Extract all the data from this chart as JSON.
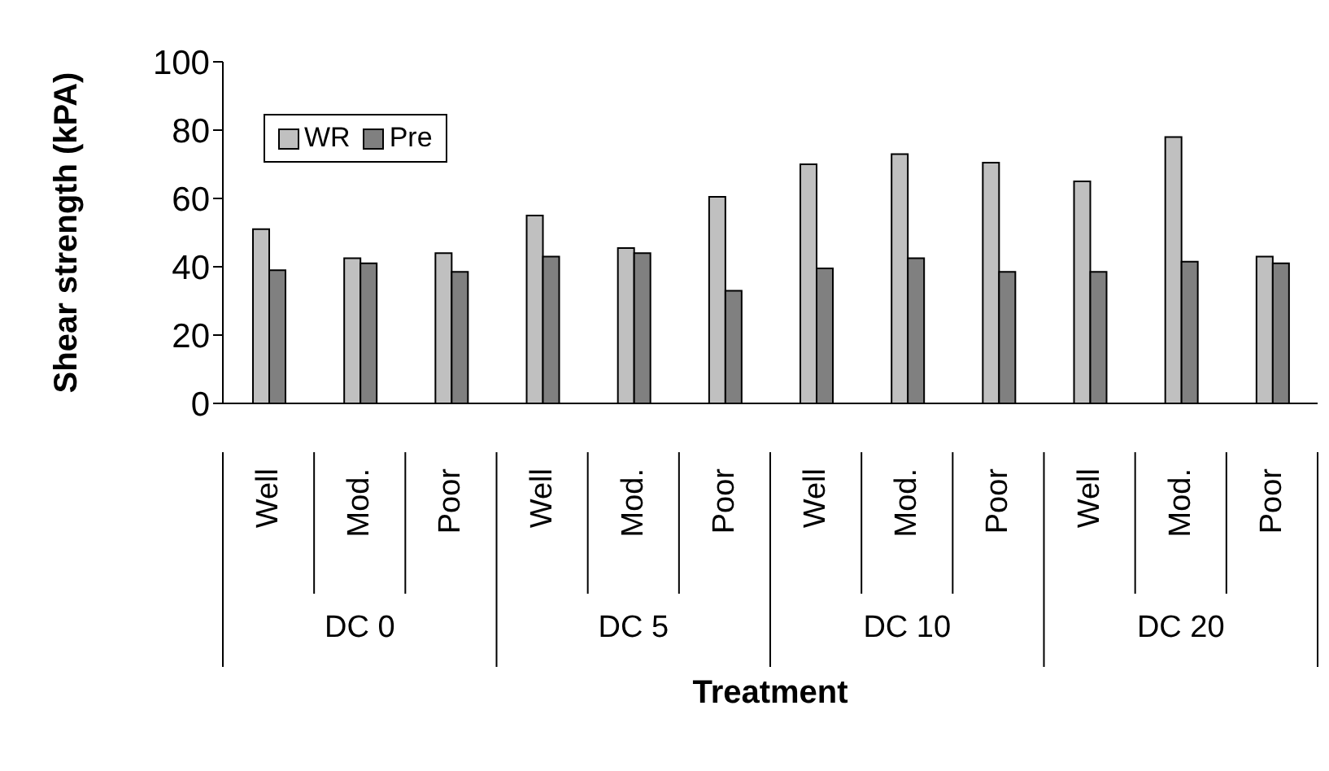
{
  "chart_data": {
    "type": "bar",
    "xlabel": "Treatment",
    "ylabel": "Shear strength (kPA)",
    "categories": [
      "Well",
      "Mod.",
      "Poor",
      "Well",
      "Mod.",
      "Poor",
      "Well",
      "Mod.",
      "Poor",
      "Well",
      "Mod.",
      "Poor"
    ],
    "annotations": [
      "DC 0",
      "DC 5",
      "DC 10",
      "DC 20"
    ],
    "series": [
      {
        "name": "WR",
        "color": "#c0c0c0",
        "values": [
          51,
          42.5,
          44,
          55,
          45.5,
          60.5,
          70,
          73,
          70.5,
          65,
          78,
          43
        ]
      },
      {
        "name": "Pre",
        "color": "#808080",
        "values": [
          39,
          41,
          38.5,
          43,
          44,
          33,
          39.5,
          42.5,
          38.5,
          38.5,
          41.5,
          41
        ]
      }
    ],
    "ylim": [
      0,
      100
    ],
    "yticks": [
      0,
      20,
      40,
      60,
      80,
      100
    ],
    "grid": false,
    "legend": "top left"
  }
}
